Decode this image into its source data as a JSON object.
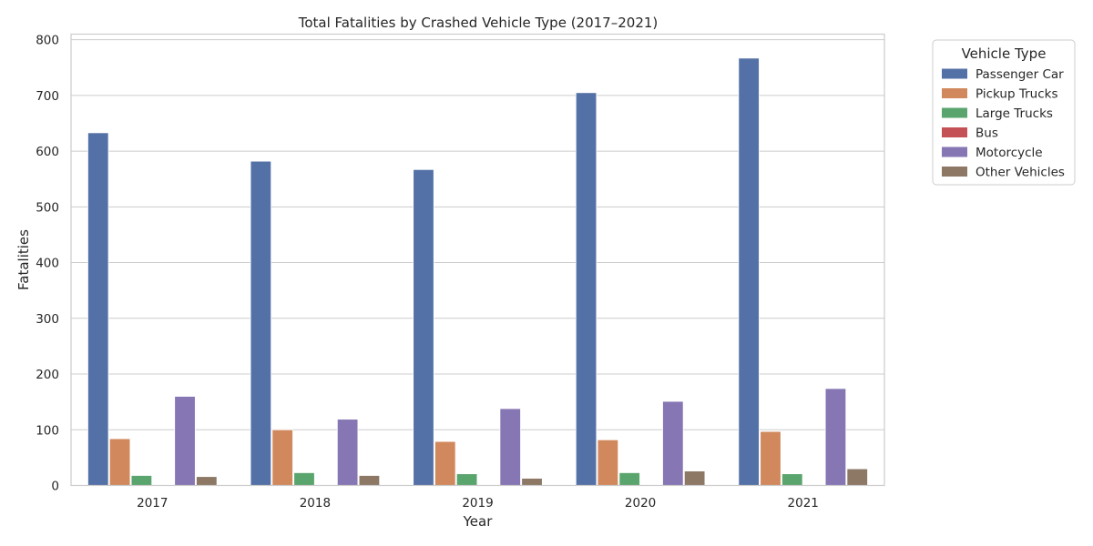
{
  "chart_data": {
    "type": "bar",
    "title": "Total Fatalities by Crashed Vehicle Type (2017–2021)",
    "xlabel": "Year",
    "ylabel": "Fatalities",
    "categories": [
      "2017",
      "2018",
      "2019",
      "2020",
      "2021"
    ],
    "ylim": [
      0,
      810
    ],
    "yticks": [
      0,
      100,
      200,
      300,
      400,
      500,
      600,
      700,
      800
    ],
    "grid": true,
    "legend": {
      "title": "Vehicle Type",
      "placement": "outside-top-right"
    },
    "series": [
      {
        "name": "Passenger Car",
        "color": "#5471a7",
        "values": [
          633,
          582,
          567,
          705,
          767
        ]
      },
      {
        "name": "Pickup Trucks",
        "color": "#d1885c",
        "values": [
          84,
          100,
          79,
          82,
          97
        ]
      },
      {
        "name": "Large Trucks",
        "color": "#5aa46d",
        "values": [
          18,
          23,
          21,
          23,
          21
        ]
      },
      {
        "name": "Bus",
        "color": "#c45155",
        "values": [
          0,
          0,
          0,
          0,
          0
        ]
      },
      {
        "name": "Motorcycle",
        "color": "#8676b3",
        "values": [
          160,
          119,
          138,
          151,
          174
        ]
      },
      {
        "name": "Other Vehicles",
        "color": "#8c7864",
        "values": [
          16,
          18,
          13,
          26,
          30
        ]
      }
    ]
  }
}
